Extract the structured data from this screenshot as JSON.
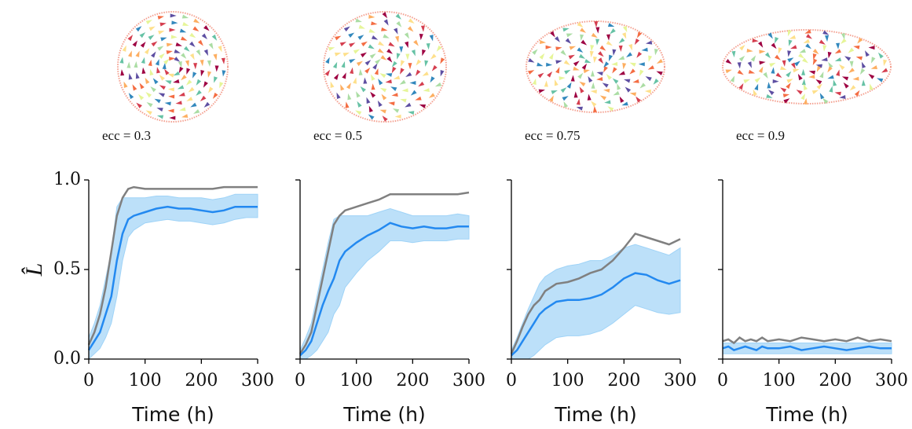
{
  "chart_data": [
    {
      "type": "line",
      "annotation": "ecc = 0.3",
      "xlabel": "Time (h)",
      "ylabel": "L̂",
      "xlim": [
        0,
        300
      ],
      "xticks": [
        0,
        100,
        200,
        300
      ],
      "ylim": [
        0,
        1
      ],
      "yticks": [
        {
          "value": 0,
          "label": "0.0"
        },
        {
          "value": 0.5,
          "label": "0.5"
        },
        {
          "value": 1,
          "label": "1.0"
        }
      ],
      "show_ytick_labels": true,
      "x": [
        0,
        10,
        20,
        30,
        40,
        50,
        60,
        70,
        80,
        100,
        120,
        140,
        160,
        180,
        200,
        220,
        240,
        260,
        280,
        300
      ],
      "band": {
        "color": "#9fd3f7",
        "lower": [
          0,
          0.03,
          0.06,
          0.12,
          0.2,
          0.35,
          0.55,
          0.68,
          0.72,
          0.76,
          0.77,
          0.78,
          0.77,
          0.77,
          0.76,
          0.75,
          0.76,
          0.78,
          0.79,
          0.79
        ],
        "upper": [
          0.12,
          0.2,
          0.3,
          0.45,
          0.6,
          0.85,
          0.9,
          0.9,
          0.9,
          0.9,
          0.91,
          0.91,
          0.9,
          0.9,
          0.9,
          0.89,
          0.9,
          0.92,
          0.92,
          0.92
        ]
      },
      "series": [
        {
          "color": "#808080",
          "values": [
            0.08,
            0.15,
            0.25,
            0.4,
            0.6,
            0.8,
            0.9,
            0.95,
            0.96,
            0.95,
            0.95,
            0.95,
            0.95,
            0.95,
            0.95,
            0.95,
            0.96,
            0.96,
            0.96,
            0.96
          ]
        },
        {
          "color": "#2389f0",
          "values": [
            0.05,
            0.1,
            0.15,
            0.25,
            0.35,
            0.55,
            0.7,
            0.78,
            0.8,
            0.82,
            0.84,
            0.85,
            0.84,
            0.84,
            0.83,
            0.82,
            0.83,
            0.85,
            0.85,
            0.85
          ]
        }
      ]
    },
    {
      "type": "line",
      "annotation": "ecc = 0.5",
      "xlabel": "Time (h)",
      "xlim": [
        0,
        300
      ],
      "xticks": [
        0,
        100,
        200,
        300
      ],
      "ylim": [
        0,
        1
      ],
      "yticks": [
        0,
        0.5,
        1
      ],
      "show_ytick_labels": false,
      "x": [
        0,
        10,
        20,
        30,
        40,
        50,
        60,
        70,
        80,
        100,
        120,
        140,
        160,
        180,
        200,
        220,
        240,
        260,
        280,
        300
      ],
      "band": {
        "color": "#9fd3f7",
        "lower": [
          0,
          0,
          0.02,
          0.05,
          0.1,
          0.15,
          0.25,
          0.3,
          0.4,
          0.48,
          0.55,
          0.6,
          0.66,
          0.66,
          0.65,
          0.66,
          0.66,
          0.66,
          0.67,
          0.67
        ],
        "upper": [
          0.05,
          0.12,
          0.2,
          0.35,
          0.5,
          0.65,
          0.78,
          0.8,
          0.8,
          0.8,
          0.8,
          0.82,
          0.84,
          0.82,
          0.8,
          0.8,
          0.8,
          0.8,
          0.81,
          0.8
        ]
      },
      "series": [
        {
          "color": "#808080",
          "values": [
            0.03,
            0.08,
            0.15,
            0.3,
            0.45,
            0.6,
            0.75,
            0.8,
            0.83,
            0.85,
            0.87,
            0.89,
            0.92,
            0.92,
            0.92,
            0.92,
            0.92,
            0.92,
            0.92,
            0.93
          ]
        },
        {
          "color": "#2389f0",
          "values": [
            0.02,
            0.05,
            0.1,
            0.2,
            0.3,
            0.38,
            0.45,
            0.55,
            0.6,
            0.65,
            0.69,
            0.72,
            0.76,
            0.74,
            0.73,
            0.74,
            0.73,
            0.73,
            0.74,
            0.74
          ]
        }
      ]
    },
    {
      "type": "line",
      "annotation": "ecc = 0.75",
      "xlabel": "Time (h)",
      "xlim": [
        0,
        300
      ],
      "xticks": [
        0,
        100,
        200,
        300
      ],
      "ylim": [
        0,
        1
      ],
      "yticks": [
        0,
        0.5,
        1
      ],
      "show_ytick_labels": false,
      "x": [
        0,
        10,
        20,
        30,
        40,
        50,
        60,
        70,
        80,
        100,
        120,
        140,
        160,
        180,
        200,
        220,
        240,
        260,
        280,
        300
      ],
      "band": {
        "color": "#9fd3f7",
        "lower": [
          0,
          0,
          0,
          0,
          0.02,
          0.05,
          0.08,
          0.1,
          0.12,
          0.13,
          0.13,
          0.14,
          0.16,
          0.2,
          0.25,
          0.3,
          0.28,
          0.26,
          0.25,
          0.26
        ],
        "upper": [
          0.05,
          0.12,
          0.2,
          0.28,
          0.35,
          0.42,
          0.46,
          0.48,
          0.5,
          0.52,
          0.53,
          0.55,
          0.55,
          0.58,
          0.62,
          0.64,
          0.62,
          0.6,
          0.58,
          0.62
        ]
      },
      "series": [
        {
          "color": "#808080",
          "values": [
            0.03,
            0.1,
            0.18,
            0.25,
            0.3,
            0.33,
            0.38,
            0.4,
            0.42,
            0.43,
            0.45,
            0.48,
            0.5,
            0.55,
            0.62,
            0.7,
            0.68,
            0.66,
            0.64,
            0.67
          ]
        },
        {
          "color": "#2389f0",
          "values": [
            0.02,
            0.05,
            0.1,
            0.15,
            0.2,
            0.25,
            0.28,
            0.3,
            0.32,
            0.33,
            0.33,
            0.34,
            0.36,
            0.4,
            0.45,
            0.48,
            0.47,
            0.44,
            0.42,
            0.44
          ]
        }
      ]
    },
    {
      "type": "line",
      "annotation": "ecc = 0.9",
      "xlabel": "Time (h)",
      "xlim": [
        0,
        300
      ],
      "xticks": [
        0,
        100,
        200,
        300
      ],
      "ylim": [
        0,
        1
      ],
      "yticks": [
        0,
        0.5,
        1
      ],
      "show_ytick_labels": false,
      "x": [
        0,
        10,
        20,
        30,
        40,
        50,
        60,
        70,
        80,
        100,
        120,
        140,
        160,
        180,
        200,
        220,
        240,
        260,
        280,
        300
      ],
      "band": {
        "color": "#9fd3f7",
        "lower": [
          0.03,
          0.03,
          0.03,
          0.03,
          0.03,
          0.03,
          0.03,
          0.03,
          0.03,
          0.03,
          0.03,
          0.03,
          0.03,
          0.03,
          0.03,
          0.03,
          0.03,
          0.03,
          0.03,
          0.03
        ],
        "upper": [
          0.09,
          0.09,
          0.09,
          0.09,
          0.09,
          0.09,
          0.09,
          0.09,
          0.09,
          0.09,
          0.09,
          0.09,
          0.09,
          0.09,
          0.09,
          0.09,
          0.09,
          0.09,
          0.09,
          0.09
        ]
      },
      "series": [
        {
          "color": "#808080",
          "values": [
            0.1,
            0.11,
            0.09,
            0.12,
            0.1,
            0.11,
            0.1,
            0.12,
            0.1,
            0.11,
            0.1,
            0.12,
            0.11,
            0.1,
            0.11,
            0.1,
            0.12,
            0.1,
            0.11,
            0.1
          ]
        },
        {
          "color": "#2389f0",
          "values": [
            0.06,
            0.07,
            0.05,
            0.06,
            0.07,
            0.06,
            0.05,
            0.07,
            0.06,
            0.06,
            0.07,
            0.05,
            0.06,
            0.07,
            0.06,
            0.05,
            0.06,
            0.07,
            0.06,
            0.06
          ]
        }
      ]
    }
  ]
}
